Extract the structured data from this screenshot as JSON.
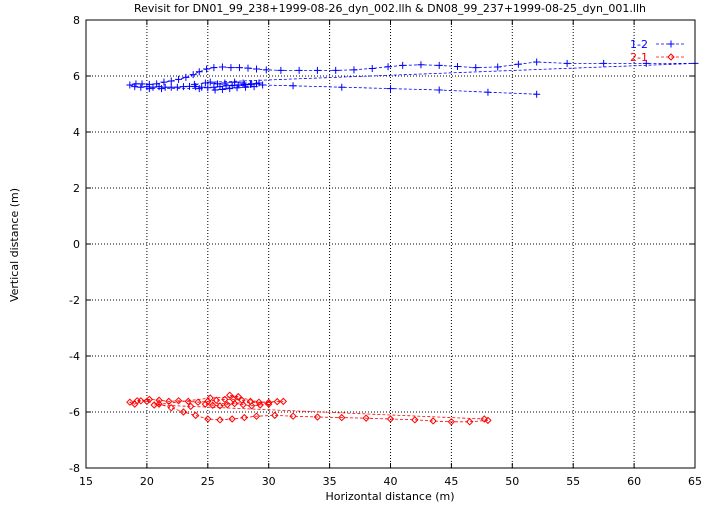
{
  "chart_data": {
    "type": "scatter",
    "title": "Revisit for DN01_99_238+1999-08-26_dyn_002.llh & DN08_99_237+1999-08-25_dyn_001.llh",
    "xlabel": "Horizontal distance (m)",
    "ylabel": "Vertical distance (m)",
    "xlim": [
      15,
      65
    ],
    "ylim": [
      -8,
      8
    ],
    "xticks": [
      15,
      20,
      25,
      30,
      35,
      40,
      45,
      50,
      55,
      60,
      65
    ],
    "yticks": [
      -8,
      -6,
      -4,
      -2,
      0,
      2,
      4,
      6,
      8
    ],
    "grid": true,
    "legend": "top-right",
    "series": [
      {
        "name": "1-2",
        "color": "#0000ff",
        "marker": "plus",
        "line": "dashed",
        "points": [
          [
            52.0,
            5.35
          ],
          [
            48.0,
            5.42
          ],
          [
            44.0,
            5.5
          ],
          [
            40.0,
            5.55
          ],
          [
            36.0,
            5.6
          ],
          [
            32.0,
            5.65
          ],
          [
            29.5,
            5.68
          ],
          [
            29.0,
            5.72
          ],
          [
            28.5,
            5.7
          ],
          [
            28.0,
            5.7
          ],
          [
            27.5,
            5.68
          ],
          [
            27.0,
            5.66
          ],
          [
            26.5,
            5.65
          ],
          [
            26.0,
            5.62
          ],
          [
            25.5,
            5.6
          ],
          [
            25.0,
            5.58
          ],
          [
            24.5,
            5.6
          ],
          [
            24.0,
            5.62
          ],
          [
            23.5,
            5.63
          ],
          [
            23.0,
            5.62
          ],
          [
            22.5,
            5.6
          ],
          [
            22.0,
            5.6
          ],
          [
            21.5,
            5.6
          ],
          [
            21.0,
            5.62
          ],
          [
            20.5,
            5.6
          ],
          [
            20.0,
            5.62
          ],
          [
            19.5,
            5.6
          ],
          [
            19.0,
            5.62
          ],
          [
            18.6,
            5.68
          ],
          [
            19.1,
            5.72
          ],
          [
            19.6,
            5.72
          ],
          [
            20.2,
            5.7
          ],
          [
            20.8,
            5.72
          ],
          [
            21.4,
            5.78
          ],
          [
            22.0,
            5.82
          ],
          [
            22.6,
            5.88
          ],
          [
            23.2,
            5.95
          ],
          [
            23.8,
            6.05
          ],
          [
            24.3,
            6.15
          ],
          [
            24.9,
            6.25
          ],
          [
            25.5,
            6.3
          ],
          [
            26.2,
            6.32
          ],
          [
            26.9,
            6.3
          ],
          [
            27.6,
            6.3
          ],
          [
            28.3,
            6.28
          ],
          [
            29.0,
            6.25
          ],
          [
            29.8,
            6.22
          ],
          [
            31.0,
            6.2
          ],
          [
            32.5,
            6.2
          ],
          [
            34.0,
            6.2
          ],
          [
            35.5,
            6.2
          ],
          [
            37.0,
            6.22
          ],
          [
            38.5,
            6.27
          ],
          [
            39.8,
            6.33
          ],
          [
            41.0,
            6.38
          ],
          [
            42.5,
            6.4
          ],
          [
            44.0,
            6.38
          ],
          [
            45.5,
            6.34
          ],
          [
            47.0,
            6.3
          ],
          [
            48.8,
            6.32
          ],
          [
            50.5,
            6.42
          ],
          [
            52.0,
            6.5
          ],
          [
            54.5,
            6.45
          ],
          [
            57.5,
            6.45
          ],
          [
            61.0,
            6.45
          ],
          [
            65.0,
            6.45
          ],
          [
            25.2,
            5.78
          ],
          [
            25.8,
            5.72
          ],
          [
            26.4,
            5.75
          ],
          [
            27.2,
            5.78
          ],
          [
            27.9,
            5.75
          ],
          [
            28.6,
            5.72
          ],
          [
            29.2,
            5.75
          ],
          [
            25.6,
            5.5
          ],
          [
            26.2,
            5.52
          ],
          [
            26.8,
            5.55
          ],
          [
            27.4,
            5.58
          ],
          [
            28.1,
            5.6
          ],
          [
            28.8,
            5.62
          ],
          [
            24.8,
            5.75
          ],
          [
            23.9,
            5.7
          ],
          [
            24.3,
            5.55
          ],
          [
            21.2,
            5.55
          ],
          [
            20.2,
            5.55
          ]
        ]
      },
      {
        "name": "2-1",
        "color": "#ff0000",
        "marker": "diamond",
        "line": "dashed",
        "points": [
          [
            48.0,
            -6.3
          ],
          [
            46.5,
            -6.35
          ],
          [
            45.0,
            -6.35
          ],
          [
            43.5,
            -6.32
          ],
          [
            42.0,
            -6.28
          ],
          [
            40.0,
            -6.25
          ],
          [
            38.0,
            -6.22
          ],
          [
            36.0,
            -6.2
          ],
          [
            34.0,
            -6.18
          ],
          [
            32.0,
            -6.15
          ],
          [
            30.5,
            -6.12
          ],
          [
            29.0,
            -6.15
          ],
          [
            28.0,
            -6.2
          ],
          [
            27.0,
            -6.25
          ],
          [
            26.0,
            -6.28
          ],
          [
            25.0,
            -6.25
          ],
          [
            24.0,
            -6.12
          ],
          [
            23.0,
            -6.0
          ],
          [
            22.0,
            -5.85
          ],
          [
            21.0,
            -5.72
          ],
          [
            20.0,
            -5.62
          ],
          [
            19.2,
            -5.6
          ],
          [
            18.6,
            -5.65
          ],
          [
            19.0,
            -5.72
          ],
          [
            19.5,
            -5.6
          ],
          [
            20.2,
            -5.55
          ],
          [
            21.0,
            -5.58
          ],
          [
            21.8,
            -5.62
          ],
          [
            22.6,
            -5.6
          ],
          [
            23.4,
            -5.62
          ],
          [
            24.2,
            -5.65
          ],
          [
            25.0,
            -5.62
          ],
          [
            25.7,
            -5.58
          ],
          [
            26.4,
            -5.55
          ],
          [
            27.1,
            -5.55
          ],
          [
            27.8,
            -5.58
          ],
          [
            28.5,
            -5.62
          ],
          [
            29.2,
            -5.65
          ],
          [
            30.0,
            -5.66
          ],
          [
            30.7,
            -5.63
          ],
          [
            31.2,
            -5.62
          ],
          [
            24.8,
            -5.72
          ],
          [
            25.4,
            -5.76
          ],
          [
            26.0,
            -5.78
          ],
          [
            26.6,
            -5.74
          ],
          [
            27.2,
            -5.7
          ],
          [
            27.9,
            -5.74
          ],
          [
            28.6,
            -5.78
          ],
          [
            29.3,
            -5.75
          ],
          [
            30.0,
            -5.72
          ],
          [
            26.8,
            -5.4
          ],
          [
            27.5,
            -5.45
          ],
          [
            25.2,
            -5.5
          ],
          [
            20.6,
            -5.75
          ],
          [
            23.6,
            -5.8
          ],
          [
            47.7,
            -6.25
          ]
        ]
      }
    ]
  }
}
